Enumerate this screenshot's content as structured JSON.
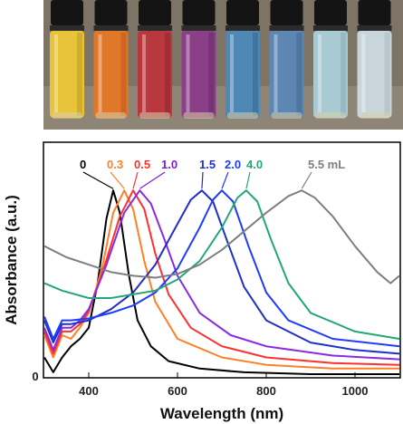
{
  "photo": {
    "description_icon": "vials-photo",
    "vial_colors": [
      "#e8c43a",
      "#e0782a",
      "#b8383e",
      "#8a3f86",
      "#4f88b5",
      "#5d86b3",
      "#a9c9d3",
      "#c8d6db"
    ],
    "liquid_shadow": [
      "#c9a428",
      "#c45e1e",
      "#962a34",
      "#6d2f6e",
      "#3c6e98",
      "#466d98",
      "#8eb2bd",
      "#b0c1c7"
    ]
  },
  "chart_data": {
    "type": "line",
    "xlabel": "Wavelength (nm)",
    "ylabel": "Absorbance (a.u.)",
    "xlim": [
      300,
      1100
    ],
    "ylim": [
      0,
      1.05
    ],
    "x_ticks": [
      400,
      600,
      800,
      1000
    ],
    "y_ticks": [
      0
    ],
    "grid": false,
    "legend_position": "top",
    "series": [
      {
        "name": "0",
        "color": "#000000",
        "label_color": "#000000",
        "peak": 455,
        "points": [
          [
            300,
            0.1
          ],
          [
            320,
            0.02
          ],
          [
            340,
            0.1
          ],
          [
            360,
            0.16
          ],
          [
            380,
            0.2
          ],
          [
            400,
            0.26
          ],
          [
            420,
            0.5
          ],
          [
            440,
            0.85
          ],
          [
            455,
            1.0
          ],
          [
            470,
            0.88
          ],
          [
            490,
            0.55
          ],
          [
            510,
            0.3
          ],
          [
            540,
            0.16
          ],
          [
            580,
            0.08
          ],
          [
            650,
            0.04
          ],
          [
            750,
            0.02
          ],
          [
            900,
            0.01
          ],
          [
            1100,
            0.01
          ]
        ]
      },
      {
        "name": "0.3",
        "color": "#ff7f27",
        "label_color": "#ff7f27",
        "peak": 480,
        "points": [
          [
            300,
            0.22
          ],
          [
            320,
            0.1
          ],
          [
            340,
            0.22
          ],
          [
            360,
            0.2
          ],
          [
            380,
            0.26
          ],
          [
            400,
            0.34
          ],
          [
            430,
            0.58
          ],
          [
            455,
            0.88
          ],
          [
            480,
            1.0
          ],
          [
            500,
            0.9
          ],
          [
            525,
            0.62
          ],
          [
            550,
            0.4
          ],
          [
            600,
            0.2
          ],
          [
            700,
            0.1
          ],
          [
            800,
            0.06
          ],
          [
            950,
            0.04
          ],
          [
            1100,
            0.04
          ]
        ]
      },
      {
        "name": "0.5",
        "color": "#ff3030",
        "label_color": "#ff3030",
        "peak": 500,
        "points": [
          [
            300,
            0.24
          ],
          [
            320,
            0.12
          ],
          [
            340,
            0.24
          ],
          [
            360,
            0.24
          ],
          [
            380,
            0.28
          ],
          [
            400,
            0.35
          ],
          [
            430,
            0.55
          ],
          [
            470,
            0.86
          ],
          [
            500,
            1.0
          ],
          [
            525,
            0.9
          ],
          [
            550,
            0.66
          ],
          [
            580,
            0.44
          ],
          [
            630,
            0.26
          ],
          [
            700,
            0.16
          ],
          [
            800,
            0.1
          ],
          [
            950,
            0.07
          ],
          [
            1100,
            0.06
          ]
        ]
      },
      {
        "name": "1.0",
        "color": "#8a2be2",
        "label_color": "#7b1fc9",
        "peak": 515,
        "points": [
          [
            300,
            0.26
          ],
          [
            320,
            0.14
          ],
          [
            340,
            0.26
          ],
          [
            360,
            0.26
          ],
          [
            380,
            0.3
          ],
          [
            400,
            0.36
          ],
          [
            440,
            0.6
          ],
          [
            480,
            0.88
          ],
          [
            515,
            1.0
          ],
          [
            540,
            0.93
          ],
          [
            570,
            0.74
          ],
          [
            600,
            0.54
          ],
          [
            650,
            0.34
          ],
          [
            720,
            0.22
          ],
          [
            800,
            0.16
          ],
          [
            950,
            0.11
          ],
          [
            1100,
            0.09
          ]
        ]
      },
      {
        "name": "1.5",
        "color": "#1f2fc8",
        "label_color": "#1f2fc8",
        "peak": 655,
        "points": [
          [
            300,
            0.3
          ],
          [
            320,
            0.18
          ],
          [
            340,
            0.28
          ],
          [
            360,
            0.28
          ],
          [
            400,
            0.3
          ],
          [
            450,
            0.36
          ],
          [
            500,
            0.45
          ],
          [
            550,
            0.6
          ],
          [
            600,
            0.82
          ],
          [
            630,
            0.95
          ],
          [
            655,
            1.0
          ],
          [
            680,
            0.94
          ],
          [
            710,
            0.74
          ],
          [
            750,
            0.48
          ],
          [
            800,
            0.3
          ],
          [
            900,
            0.18
          ],
          [
            1000,
            0.14
          ],
          [
            1100,
            0.12
          ]
        ]
      },
      {
        "name": "2.0",
        "color": "#1e3cff",
        "label_color": "#1e3cff",
        "peak": 700,
        "points": [
          [
            300,
            0.32
          ],
          [
            320,
            0.2
          ],
          [
            340,
            0.3
          ],
          [
            360,
            0.3
          ],
          [
            400,
            0.31
          ],
          [
            450,
            0.34
          ],
          [
            500,
            0.38
          ],
          [
            550,
            0.45
          ],
          [
            600,
            0.58
          ],
          [
            650,
            0.8
          ],
          [
            680,
            0.95
          ],
          [
            700,
            1.0
          ],
          [
            725,
            0.94
          ],
          [
            760,
            0.7
          ],
          [
            800,
            0.45
          ],
          [
            850,
            0.3
          ],
          [
            950,
            0.2
          ],
          [
            1100,
            0.16
          ]
        ]
      },
      {
        "name": "4.0",
        "color": "#22a877",
        "label_color": "#22a877",
        "peak": 755,
        "points": [
          [
            300,
            0.5
          ],
          [
            340,
            0.46
          ],
          [
            400,
            0.42
          ],
          [
            450,
            0.42
          ],
          [
            500,
            0.44
          ],
          [
            550,
            0.46
          ],
          [
            600,
            0.52
          ],
          [
            650,
            0.62
          ],
          [
            700,
            0.8
          ],
          [
            735,
            0.96
          ],
          [
            755,
            1.0
          ],
          [
            780,
            0.94
          ],
          [
            810,
            0.74
          ],
          [
            850,
            0.5
          ],
          [
            900,
            0.34
          ],
          [
            1000,
            0.24
          ],
          [
            1100,
            0.2
          ]
        ]
      },
      {
        "name": "5.5 mL",
        "color": "#7f7f7f",
        "label_color": "#7f7f7f",
        "peak": 880,
        "points": [
          [
            300,
            0.7
          ],
          [
            350,
            0.64
          ],
          [
            400,
            0.6
          ],
          [
            450,
            0.56
          ],
          [
            500,
            0.54
          ],
          [
            550,
            0.53
          ],
          [
            600,
            0.55
          ],
          [
            650,
            0.6
          ],
          [
            700,
            0.68
          ],
          [
            750,
            0.78
          ],
          [
            800,
            0.88
          ],
          [
            850,
            0.97
          ],
          [
            880,
            1.0
          ],
          [
            910,
            0.96
          ],
          [
            950,
            0.86
          ],
          [
            1000,
            0.7
          ],
          [
            1050,
            0.56
          ],
          [
            1080,
            0.5
          ],
          [
            1100,
            0.54
          ]
        ]
      }
    ]
  }
}
